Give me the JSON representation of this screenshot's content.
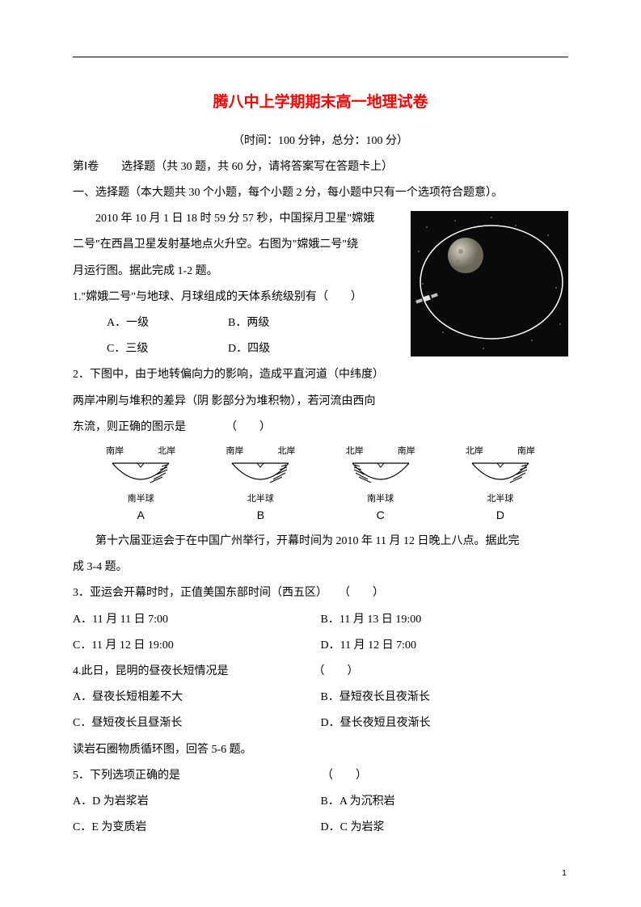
{
  "title": "腾八中上学期期末高一地理试卷",
  "title_color": "#ff0000",
  "meta": "（时间：100 分钟，总分：100 分）",
  "section1": "第Ⅰ卷　　选择题（共 30 题，共 60 分，请将答案写在答题卡上）",
  "section2": "一、选择题（本大题共 30 个小题，每个小题 2 分，每小题中只有一个选项符合题意）。",
  "intro1a": "2010 年 10 月 1 日 18 时 59 分 57 秒，中国探月卫星\"嫦娥",
  "intro1b": "二号\"在西昌卫星发射基地点火升空。右图为\"嫦娥二号\"绕",
  "intro1c": "月运行图。据此完成 1-2 题。",
  "q1": "1.\"嫦娥二号\"与地球、月球组成的天体系统级别有（　　）",
  "q1a": "A．一级",
  "q1b": "B．两级",
  "q1c": "C．三级",
  "q1d": "D．四级",
  "q2a": "2．下图中，由于地转偏向力的影响，造成平直河道（中纬度）",
  "q2b": "两岸冲刷与堆积的差异（阴 影部分为堆积物），若河流由西向",
  "q2c": "东流，则正确的图示是　　　　（　　）",
  "diagrams": [
    {
      "left": "南岸",
      "right": "北岸",
      "bottom": "南半球",
      "letter": "A",
      "deposit_side": "right"
    },
    {
      "left": "南岸",
      "right": "北岸",
      "bottom": "北半球",
      "letter": "B",
      "deposit_side": "right"
    },
    {
      "left": "北岸",
      "right": "南岸",
      "bottom": "南半球",
      "letter": "C",
      "deposit_side": "left"
    },
    {
      "left": "北岸",
      "right": "南岸",
      "bottom": "北半球",
      "letter": "D",
      "deposit_side": "right"
    }
  ],
  "intro3a": "第十六届亚运会于在中国广州举行，开幕时间为 2010 年 11 月 12 日晚上八点。据此完",
  "intro3b": "成 3-4 题。",
  "q3": "3．亚运会开幕时时，正值美国东部时间（西五区）　　（　　）",
  "q3a": "A．11 月 11 日 7:00",
  "q3b": "B．11 月 13 日 19:00",
  "q3c": "C．11 月 12 日 19:00",
  "q3d": "D．11 月 12 日 7:00",
  "q4": "4.此日，昆明的昼夜长短情况是　　　　　　　　（　　）",
  "q4a": "A．昼夜长短相差不大",
  "q4b": "B．昼短夜长且夜渐长",
  "q4c": "C．昼短夜长且昼渐长",
  "q4d": "D．昼长夜短且夜渐长",
  "intro5": "读岩石圈物质循环图，回答 5-6 题。",
  "q5": "5．下列选项正确的是　　　　　　　　　　　　　（　　）",
  "q5a": "A．D 为岩浆岩",
  "q5b": "B．A 为沉积岩",
  "q5c": "C．E 为变质岩",
  "q5d": "D．C 为岩浆",
  "page_number": "1",
  "orbit_image": {
    "background": "#0a0a0a",
    "moon_color": "#9a9688",
    "orbit_color": "#ffffff",
    "satellite_color": "#e8e8e8"
  },
  "river_diagram_style": {
    "stroke_color": "#000000",
    "stroke_width": 1.2,
    "hatch_color": "#000000"
  }
}
